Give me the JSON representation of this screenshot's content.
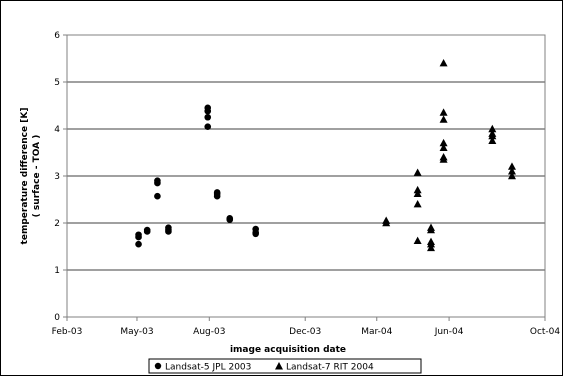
{
  "chart_data": {
    "type": "scatter",
    "xlabel": "image acquisition date",
    "ylabel_lines": [
      "temperature difference [K]",
      "( surface - TOA )"
    ],
    "ylim": [
      0,
      6
    ],
    "yticks": [
      0,
      1,
      2,
      3,
      4,
      5,
      6
    ],
    "xlim": [
      "2003-02-01",
      "2004-10-01"
    ],
    "xtick_dates": [
      "2003-02-01",
      "2003-05-01",
      "2003-08-01",
      "2003-12-01",
      "2004-03-01",
      "2004-06-01",
      "2004-10-01"
    ],
    "xtick_labels": [
      "Feb-03",
      "May-03",
      "Aug-03",
      "Dec-03",
      "Mar-04",
      "Jun-04",
      "Oct-04"
    ],
    "grid": "horizontal",
    "legend": "bottom",
    "series": [
      {
        "name": "Landsat-5 JPL 2003",
        "marker": "circle",
        "color": "#000000",
        "points": [
          {
            "x": "2003-05-03",
            "y": 1.75
          },
          {
            "x": "2003-05-03",
            "y": 1.7
          },
          {
            "x": "2003-05-03",
            "y": 1.55
          },
          {
            "x": "2003-05-14",
            "y": 1.85
          },
          {
            "x": "2003-05-14",
            "y": 1.82
          },
          {
            "x": "2003-05-27",
            "y": 2.9
          },
          {
            "x": "2003-05-27",
            "y": 2.85
          },
          {
            "x": "2003-05-27",
            "y": 2.57
          },
          {
            "x": "2003-06-10",
            "y": 1.9
          },
          {
            "x": "2003-06-10",
            "y": 1.85
          },
          {
            "x": "2003-06-10",
            "y": 1.82
          },
          {
            "x": "2003-07-30",
            "y": 4.45
          },
          {
            "x": "2003-07-30",
            "y": 4.38
          },
          {
            "x": "2003-07-30",
            "y": 4.25
          },
          {
            "x": "2003-07-30",
            "y": 4.05
          },
          {
            "x": "2003-08-11",
            "y": 2.65
          },
          {
            "x": "2003-08-11",
            "y": 2.62
          },
          {
            "x": "2003-08-11",
            "y": 2.57
          },
          {
            "x": "2003-08-27",
            "y": 2.1
          },
          {
            "x": "2003-08-27",
            "y": 2.07
          },
          {
            "x": "2003-09-29",
            "y": 1.87
          },
          {
            "x": "2003-09-29",
            "y": 1.8
          },
          {
            "x": "2003-09-29",
            "y": 1.77
          }
        ]
      },
      {
        "name": "Landsat-7 RIT 2004",
        "marker": "triangle",
        "color": "#000000",
        "points": [
          {
            "x": "2004-03-13",
            "y": 2.05
          },
          {
            "x": "2004-03-13",
            "y": 2.0
          },
          {
            "x": "2004-04-22",
            "y": 3.07
          },
          {
            "x": "2004-04-22",
            "y": 2.7
          },
          {
            "x": "2004-04-22",
            "y": 2.62
          },
          {
            "x": "2004-04-22",
            "y": 2.4
          },
          {
            "x": "2004-04-22",
            "y": 1.62
          },
          {
            "x": "2004-05-09",
            "y": 1.9
          },
          {
            "x": "2004-05-09",
            "y": 1.85
          },
          {
            "x": "2004-05-09",
            "y": 1.6
          },
          {
            "x": "2004-05-09",
            "y": 1.55
          },
          {
            "x": "2004-05-09",
            "y": 1.47
          },
          {
            "x": "2004-05-25",
            "y": 5.4
          },
          {
            "x": "2004-05-25",
            "y": 4.35
          },
          {
            "x": "2004-05-25",
            "y": 4.2
          },
          {
            "x": "2004-05-25",
            "y": 3.7
          },
          {
            "x": "2004-05-25",
            "y": 3.6
          },
          {
            "x": "2004-05-25",
            "y": 3.4
          },
          {
            "x": "2004-05-25",
            "y": 3.35
          },
          {
            "x": "2004-07-26",
            "y": 4.0
          },
          {
            "x": "2004-07-26",
            "y": 3.9
          },
          {
            "x": "2004-07-26",
            "y": 3.85
          },
          {
            "x": "2004-07-26",
            "y": 3.75
          },
          {
            "x": "2004-08-20",
            "y": 3.2
          },
          {
            "x": "2004-08-20",
            "y": 3.1
          },
          {
            "x": "2004-08-20",
            "y": 3.0
          }
        ]
      }
    ]
  }
}
